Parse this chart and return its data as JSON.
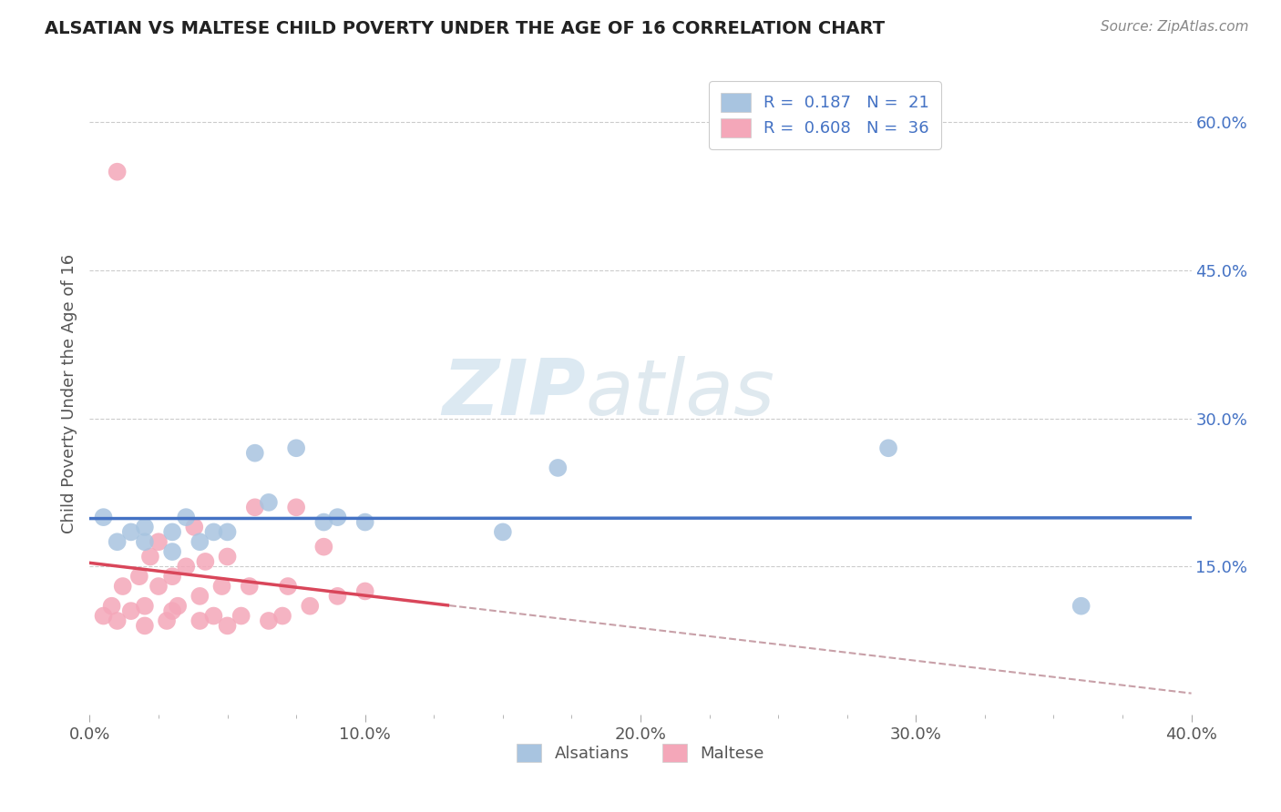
{
  "title": "ALSATIAN VS MALTESE CHILD POVERTY UNDER THE AGE OF 16 CORRELATION CHART",
  "source": "Source: ZipAtlas.com",
  "ylabel": "Child Poverty Under the Age of 16",
  "xlim": [
    0.0,
    0.4
  ],
  "ylim": [
    0.0,
    0.65
  ],
  "xtick_labels": [
    "0.0%",
    "",
    "",
    "",
    "",
    "",
    "",
    "",
    "10.0%",
    "",
    "",
    "",
    "",
    "",
    "",
    "",
    "",
    "",
    "20.0%",
    "",
    "",
    "",
    "",
    "",
    "",
    "",
    "",
    "",
    "30.0%",
    "",
    "",
    "",
    "",
    "",
    "",
    "",
    "",
    "",
    "40.0%"
  ],
  "xtick_vals": [
    0.0,
    0.01,
    0.02,
    0.03,
    0.04,
    0.05,
    0.06,
    0.07,
    0.08,
    0.09,
    0.1,
    0.11,
    0.12,
    0.13,
    0.14,
    0.15,
    0.16,
    0.17,
    0.18,
    0.19,
    0.2,
    0.21,
    0.22,
    0.23,
    0.24,
    0.25,
    0.26,
    0.27,
    0.28,
    0.29,
    0.3,
    0.31,
    0.32,
    0.33,
    0.34,
    0.35,
    0.36,
    0.37,
    0.38,
    0.39,
    0.4
  ],
  "xtick_major_vals": [
    0.0,
    0.1,
    0.2,
    0.3,
    0.4
  ],
  "xtick_major_labels": [
    "0.0%",
    "10.0%",
    "20.0%",
    "30.0%",
    "40.0%"
  ],
  "ytick_labels": [
    "15.0%",
    "30.0%",
    "45.0%",
    "60.0%"
  ],
  "ytick_vals": [
    0.15,
    0.3,
    0.45,
    0.6
  ],
  "watermark_zip": "ZIP",
  "watermark_atlas": "atlas",
  "legend1_label": "R =  0.187   N =  21",
  "legend2_label": "R =  0.608   N =  36",
  "legend_bottom_label1": "Alsatians",
  "legend_bottom_label2": "Maltese",
  "alsatian_color": "#a8c4e0",
  "maltese_color": "#f4a7b9",
  "alsatian_line_color": "#4472c4",
  "maltese_line_color": "#d9465a",
  "maltese_dashed_color": "#c8a0a8",
  "background_color": "#ffffff",
  "alsatian_x": [
    0.005,
    0.01,
    0.015,
    0.02,
    0.02,
    0.03,
    0.03,
    0.035,
    0.04,
    0.045,
    0.05,
    0.06,
    0.065,
    0.075,
    0.085,
    0.09,
    0.1,
    0.15,
    0.17,
    0.29,
    0.36
  ],
  "alsatian_y": [
    0.2,
    0.175,
    0.185,
    0.175,
    0.19,
    0.165,
    0.185,
    0.2,
    0.175,
    0.185,
    0.185,
    0.265,
    0.215,
    0.27,
    0.195,
    0.2,
    0.195,
    0.185,
    0.25,
    0.27,
    0.11
  ],
  "maltese_x": [
    0.005,
    0.008,
    0.01,
    0.012,
    0.015,
    0.018,
    0.02,
    0.02,
    0.022,
    0.025,
    0.025,
    0.028,
    0.03,
    0.03,
    0.032,
    0.035,
    0.038,
    0.04,
    0.04,
    0.042,
    0.045,
    0.048,
    0.05,
    0.05,
    0.055,
    0.058,
    0.06,
    0.065,
    0.07,
    0.072,
    0.075,
    0.08,
    0.085,
    0.09,
    0.1,
    0.01
  ],
  "maltese_y": [
    0.1,
    0.11,
    0.095,
    0.13,
    0.105,
    0.14,
    0.09,
    0.11,
    0.16,
    0.13,
    0.175,
    0.095,
    0.105,
    0.14,
    0.11,
    0.15,
    0.19,
    0.095,
    0.12,
    0.155,
    0.1,
    0.13,
    0.09,
    0.16,
    0.1,
    0.13,
    0.21,
    0.095,
    0.1,
    0.13,
    0.21,
    0.11,
    0.17,
    0.12,
    0.125,
    0.55
  ]
}
